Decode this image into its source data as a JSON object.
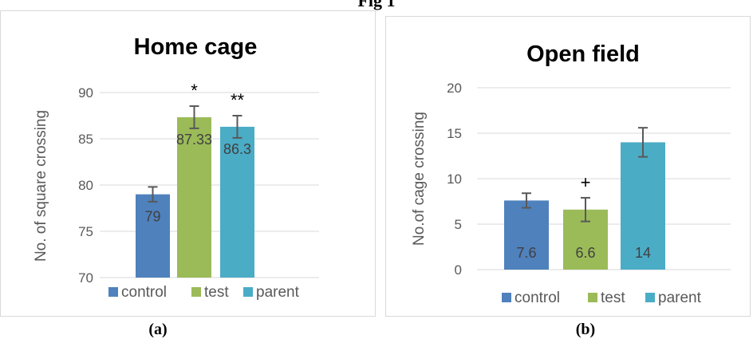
{
  "figure_title": "Fig 1",
  "panel_labels": [
    "(a)",
    "(b)"
  ],
  "colors": {
    "control": "#4F81BD",
    "test": "#9BBB59",
    "parent": "#4BACC6",
    "error_bar": "#595959",
    "axis_text": "#595959"
  },
  "chart_data": [
    {
      "type": "bar",
      "title": "Home cage",
      "xlabel": "",
      "ylabel": "No. of square crossing",
      "ylim": [
        70,
        90
      ],
      "yticks": [
        70,
        75,
        80,
        85,
        90
      ],
      "grid": true,
      "legend": "bottom",
      "series": [
        {
          "name": "control",
          "value": 79,
          "data_label": "79",
          "error": 0.8,
          "annotation": ""
        },
        {
          "name": "test",
          "value": 87.33,
          "data_label": "87.33",
          "error": 1.2,
          "annotation": "*"
        },
        {
          "name": "parent",
          "value": 86.3,
          "data_label": "86.3",
          "error": 1.2,
          "annotation": "**"
        }
      ]
    },
    {
      "type": "bar",
      "title": "Open field",
      "xlabel": "",
      "ylabel": "No.of cage crossing",
      "ylim": [
        0,
        20
      ],
      "yticks": [
        0,
        5,
        10,
        15,
        20
      ],
      "grid": true,
      "legend": "bottom",
      "series": [
        {
          "name": "control",
          "value": 7.6,
          "data_label": "7.6",
          "error": 0.8,
          "annotation": ""
        },
        {
          "name": "test",
          "value": 6.6,
          "data_label": "6.6",
          "error": 1.3,
          "annotation": "+"
        },
        {
          "name": "parent",
          "value": 14,
          "data_label": "14",
          "error": 1.6,
          "annotation": ""
        }
      ]
    }
  ]
}
